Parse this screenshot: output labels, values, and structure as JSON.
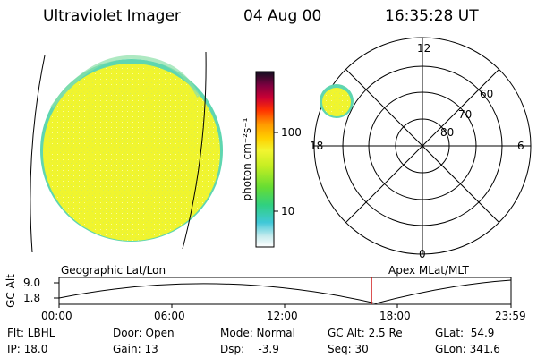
{
  "header": {
    "title": "Ultraviolet Imager",
    "date": "04 Aug 00",
    "time": "16:35:28 UT"
  },
  "colorbar": {
    "unit_label": "photon cm⁻²s⁻¹",
    "ticks": [
      "100",
      "10"
    ],
    "scale": "log"
  },
  "polar_plot": {
    "mlt_labels": [
      "12",
      "18",
      "6",
      "0"
    ],
    "lat_labels": [
      "60",
      "70",
      "80"
    ]
  },
  "altitude_plot": {
    "left_label": "Geographic Lat/Lon",
    "right_label": "Apex MLat/MLT",
    "ylabel": "GC Alt",
    "y_ticks": [
      "9.0",
      "1.8"
    ],
    "x_ticks": [
      "00:00",
      "06:00",
      "12:00",
      "18:00",
      "23:59"
    ],
    "current_time_hours": 16.59,
    "marker_color": "#cc0000"
  },
  "info": {
    "flt": "Flt: LBHL",
    "ip": "IP: 18.0",
    "door": "Door: Open",
    "gain": "Gain: 13",
    "mode": "Mode: Normal",
    "dsp": "Dsp:    -3.9",
    "gcalt": "GC Alt: 2.5 Re",
    "seq": "Seq: 30",
    "glat": "GLat:  54.9",
    "glon": "GLon: 341.6"
  },
  "colors": {
    "disk_fill": "#f0f52e",
    "disk_edge": "#5fd6b0",
    "line": "#000000"
  }
}
